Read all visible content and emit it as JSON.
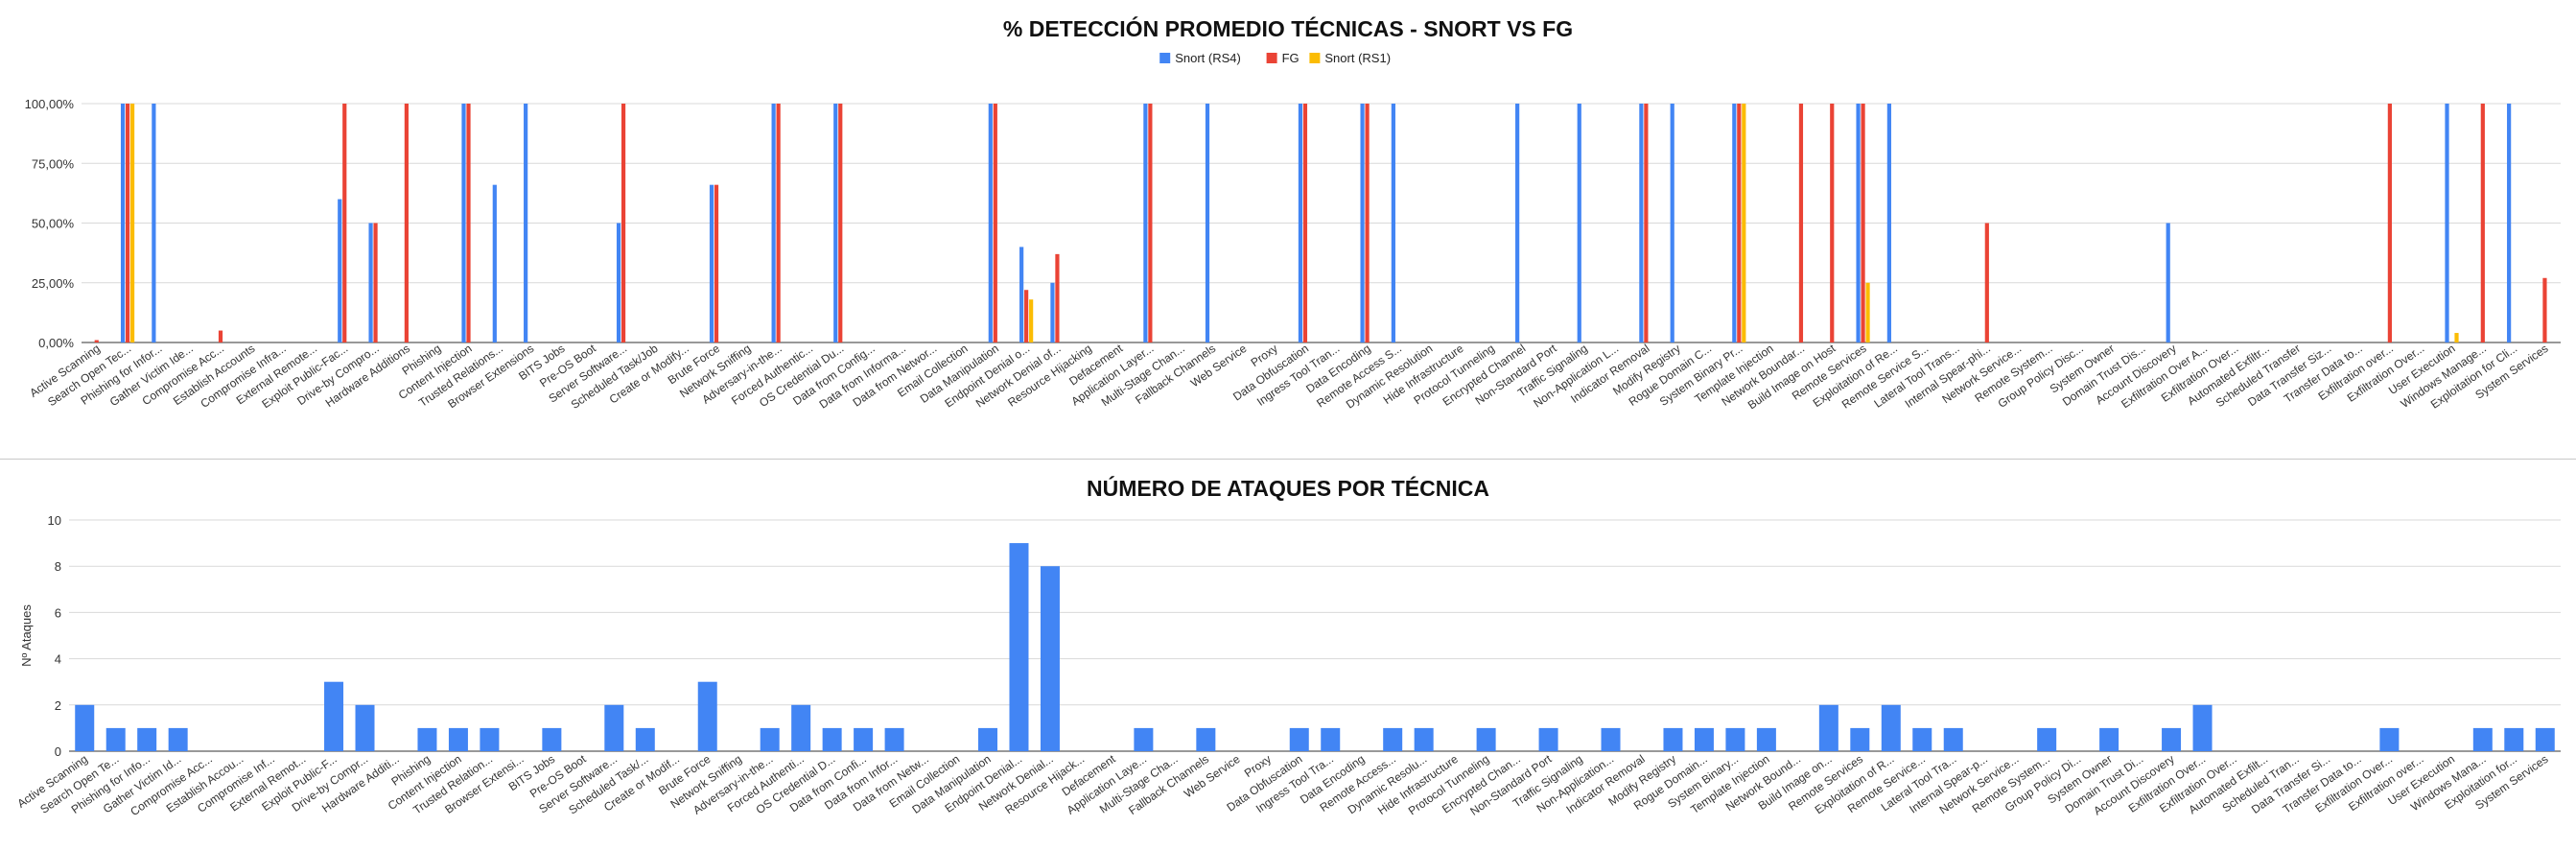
{
  "chart_data": [
    {
      "type": "bar",
      "title": "% DETECCIÓN PROMEDIO TÉCNICAS - SNORT VS FG",
      "ylabel": "",
      "xlabel": "",
      "ylim": [
        0,
        100
      ],
      "yticks": [
        "0,00%",
        "25,00%",
        "50,00%",
        "75,00%",
        "100,00%"
      ],
      "legend_position": "top",
      "colors": [
        "#4285f4",
        "#ea4335",
        "#fbbc04"
      ],
      "categories": [
        "Active Scanning",
        "Search Open Tec...",
        "Phishing for Infor...",
        "Gather Victim Ide...",
        "Compromise Acc...",
        "Establish Accounts",
        "Compromise Infra...",
        "External Remote...",
        "Exploit Public-Fac...",
        "Drive-by Compro...",
        "Hardware Additions",
        "Phishing",
        "Content Injection",
        "Trusted Relations...",
        "Browser Extensions",
        "BITS Jobs",
        "Pre-OS Boot",
        "Server Software...",
        "Scheduled Task/Job",
        "Create or Modify...",
        "Brute Force",
        "Network Sniffing",
        "Adversary-in-the...",
        "Forced Authentic...",
        "OS Credential Du...",
        "Data from Config...",
        "Data from Informa...",
        "Data from Networ...",
        "Email Collection",
        "Data Manipulation",
        "Endpoint Denial o...",
        "Network Denial of...",
        "Resource Hijacking",
        "Defacement",
        "Application Layer...",
        "Multi-Stage Chan...",
        "Fallback Channels",
        "Web Service",
        "Proxy",
        "Data Obfuscation",
        "Ingress Tool Tran...",
        "Data Encoding",
        "Remote Access S...",
        "Dynamic Resolution",
        "Hide Infrastructure",
        "Protocol Tunneling",
        "Encrypted Channel",
        "Non-Standard Port",
        "Traffic Signaling",
        "Non-Application L...",
        "Indicator Removal",
        "Modify Registry",
        "Rogue Domain C...",
        "System Binary Pr...",
        "Template Injection",
        "Network Boundar...",
        "Build Image on Host",
        "Remote Services",
        "Exploitation of Re...",
        "Remote Service S...",
        "Lateral Tool Trans...",
        "Internal Spear-phi...",
        "Network Service...",
        "Remote System...",
        "Group Policy Disc...",
        "System Owner",
        "Domain Trust Dis...",
        "Account Discovery",
        "Exfiltration Over A...",
        "Exfiltration Over...",
        "Automated Exfiltr...",
        "Scheduled Transfer",
        "Data Transfer Siz...",
        "Transfer Data to...",
        "Exfiltration over...",
        "Exfiltration Over...",
        "User Execution",
        "Windows Manage...",
        "Exploitation for Cli...",
        "System Services"
      ],
      "series": [
        {
          "name": "Snort (RS4)",
          "values": [
            0,
            100,
            100,
            0,
            0,
            0,
            0,
            0,
            60,
            50,
            0,
            0,
            100,
            66,
            100,
            0,
            0,
            50,
            0,
            0,
            66,
            0,
            100,
            0,
            100,
            0,
            0,
            0,
            0,
            100,
            40,
            25,
            0,
            0,
            100,
            0,
            100,
            0,
            0,
            100,
            0,
            100,
            100,
            0,
            0,
            0,
            100,
            0,
            100,
            0,
            100,
            100,
            0,
            100,
            0,
            0,
            0,
            100,
            100,
            0,
            0,
            0,
            0,
            0,
            0,
            0,
            0,
            50,
            0,
            0,
            0,
            0,
            0,
            0,
            0,
            0,
            100,
            0,
            100,
            0
          ]
        },
        {
          "name": "FG",
          "values": [
            1,
            100,
            0,
            0,
            5,
            0,
            0,
            0,
            100,
            50,
            100,
            0,
            100,
            0,
            0,
            0,
            0,
            100,
            0,
            0,
            66,
            0,
            100,
            0,
            100,
            0,
            0,
            0,
            0,
            100,
            22,
            37,
            0,
            0,
            100,
            0,
            0,
            0,
            0,
            100,
            0,
            100,
            0,
            0,
            0,
            0,
            0,
            0,
            0,
            0,
            100,
            0,
            0,
            100,
            0,
            100,
            100,
            100,
            0,
            0,
            0,
            50,
            0,
            0,
            0,
            0,
            0,
            0,
            0,
            0,
            0,
            0,
            0,
            0,
            100,
            0,
            0,
            100,
            0,
            27
          ]
        },
        {
          "name": "Snort (RS1)",
          "values": [
            0,
            100,
            0,
            0,
            0,
            0,
            0,
            0,
            0,
            0,
            0,
            0,
            0,
            0,
            0,
            0,
            0,
            0,
            0,
            0,
            0,
            0,
            0,
            0,
            0,
            0,
            0,
            0,
            0,
            0,
            18,
            0,
            0,
            0,
            0,
            0,
            0,
            0,
            0,
            0,
            0,
            0,
            0,
            0,
            0,
            0,
            0,
            0,
            0,
            0,
            0,
            0,
            0,
            100,
            0,
            0,
            0,
            25,
            0,
            0,
            0,
            0,
            0,
            0,
            0,
            0,
            0,
            0,
            0,
            0,
            0,
            0,
            0,
            0,
            0,
            0,
            4,
            0,
            0,
            0
          ]
        }
      ]
    },
    {
      "type": "bar",
      "title": "NÚMERO DE ATAQUES POR TÉCNICA",
      "ylabel": "Nº Ataques",
      "xlabel": "",
      "ylim": [
        0,
        10
      ],
      "yticks": [
        "0",
        "2",
        "4",
        "6",
        "8",
        "10"
      ],
      "colors": [
        "#4285f4"
      ],
      "categories": [
        "Active Scanning",
        "Search Open Te...",
        "Phishing for Info...",
        "Gather Victim Id...",
        "Compromise Acc...",
        "Establish Accou...",
        "Compromise Inf...",
        "External Remot...",
        "Exploit Public-F...",
        "Drive-by Compr...",
        "Hardware Additi...",
        "Phishing",
        "Content Injection",
        "Trusted Relation...",
        "Browser Extensi...",
        "BITS Jobs",
        "Pre-OS Boot",
        "Server Software...",
        "Scheduled Task/...",
        "Create or Modif...",
        "Brute Force",
        "Network Sniffing",
        "Adversary-in-the...",
        "Forced Authenti...",
        "OS Credential D...",
        "Data from Confi...",
        "Data from Infor...",
        "Data from Netw...",
        "Email Collection",
        "Data Manipulation",
        "Endpoint Denial...",
        "Network Denial...",
        "Resource Hijack...",
        "Defacement",
        "Application Laye...",
        "Multi-Stage Cha...",
        "Fallback Channels",
        "Web Service",
        "Proxy",
        "Data Obfuscation",
        "Ingress Tool Tra...",
        "Data Encoding",
        "Remote Access...",
        "Dynamic Resolu...",
        "Hide Infrastructure",
        "Protocol Tunneling",
        "Encrypted Chan...",
        "Non-Standard Port",
        "Traffic Signaling",
        "Non-Application...",
        "Indicator Removal",
        "Modify Registry",
        "Rogue Domain...",
        "System Binary...",
        "Template Injection",
        "Network Bound...",
        "Build Image on...",
        "Remote Services",
        "Exploitation of R...",
        "Remote Service...",
        "Lateral Tool Tra...",
        "Internal Spear-p...",
        "Network Service...",
        "Remote System...",
        "Group Policy Di...",
        "System Owner",
        "Domain Trust Di...",
        "Account Discovery",
        "Exfiltration Over...",
        "Exfiltration Over...",
        "Automated Exfilt...",
        "Scheduled Tran...",
        "Data Transfer Si...",
        "Transfer Data to...",
        "Exfiltration Over...",
        "Exfiltration over...",
        "User Execution",
        "Windows Mana...",
        "Exploitation for...",
        "System Services"
      ],
      "series": [
        {
          "name": "",
          "values": [
            2,
            1,
            1,
            1,
            0,
            0,
            0,
            0,
            3,
            2,
            0,
            1,
            1,
            1,
            0,
            1,
            0,
            2,
            1,
            0,
            3,
            0,
            1,
            2,
            1,
            1,
            1,
            0,
            0,
            1,
            9,
            8,
            0,
            0,
            1,
            0,
            1,
            0,
            0,
            1,
            1,
            0,
            1,
            1,
            0,
            1,
            0,
            1,
            0,
            1,
            0,
            1,
            1,
            1,
            1,
            0,
            2,
            1,
            2,
            1,
            1,
            0,
            0,
            1,
            0,
            1,
            0,
            1,
            2,
            0,
            0,
            0,
            0,
            0,
            1,
            0,
            0,
            1,
            1,
            1
          ]
        }
      ]
    }
  ]
}
